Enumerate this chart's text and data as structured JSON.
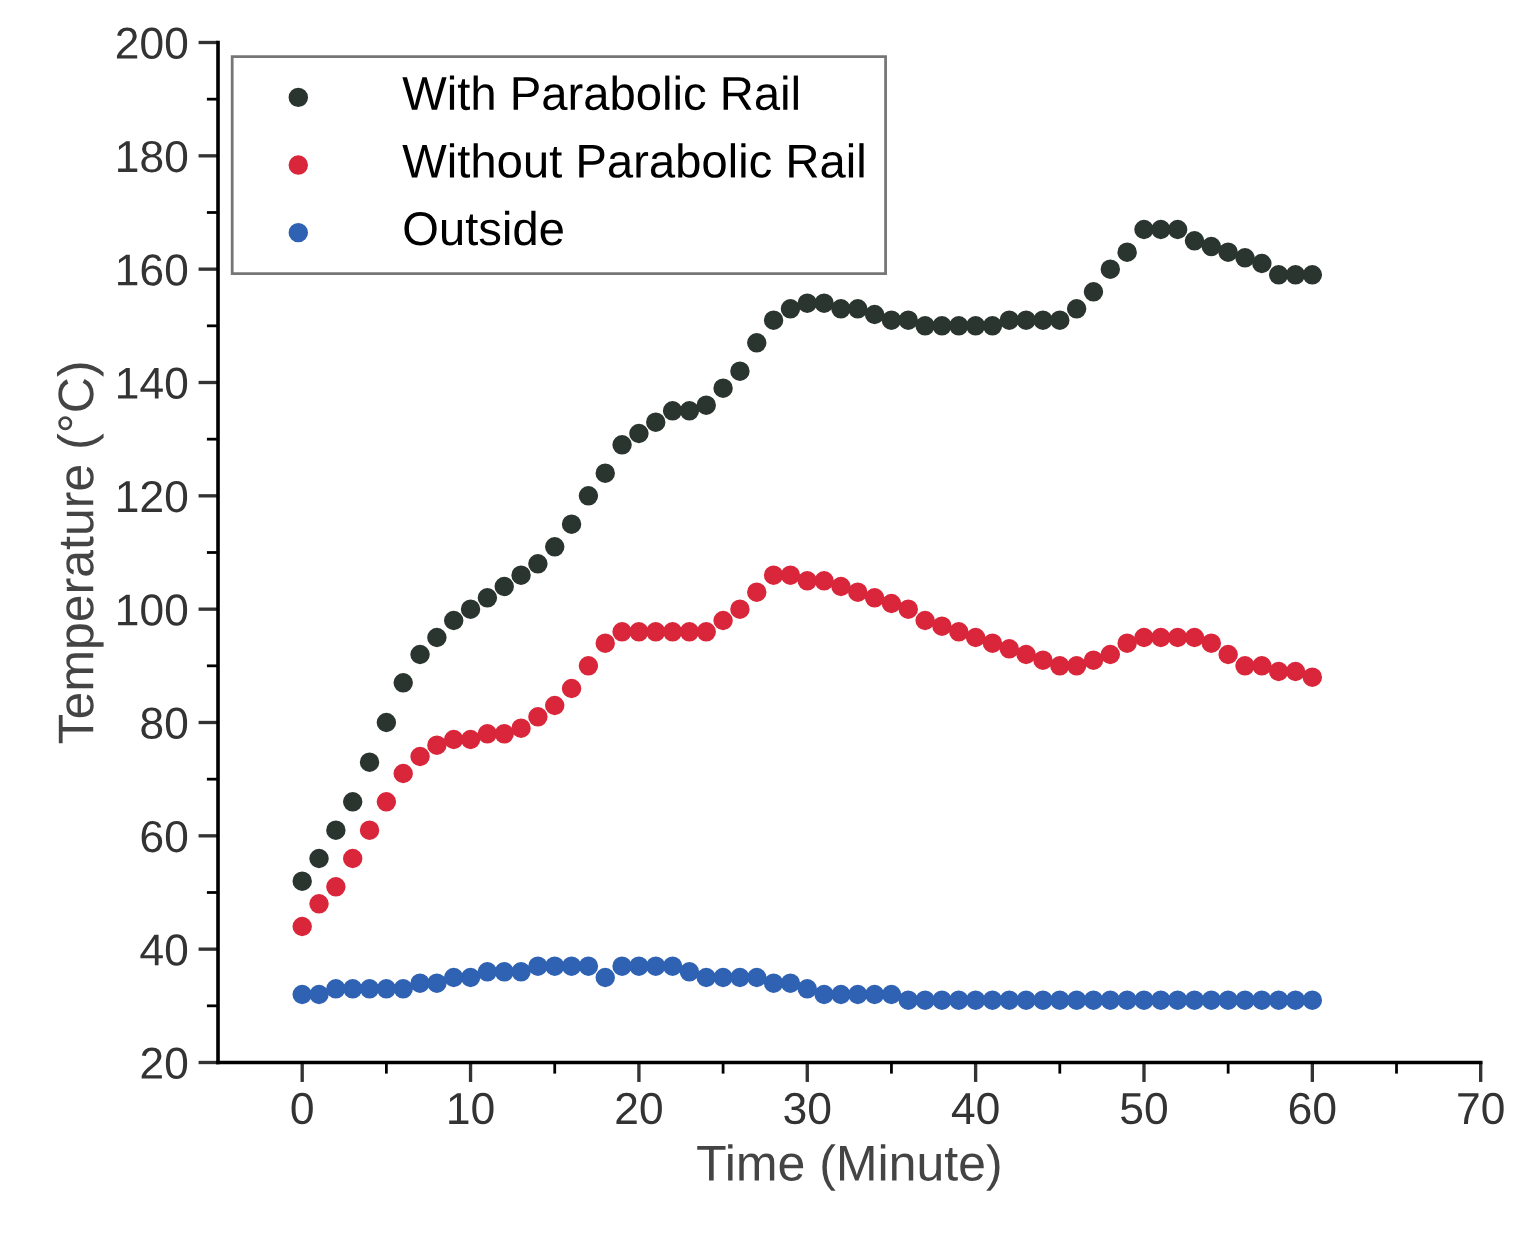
{
  "chart_data": {
    "type": "scatter",
    "xlabel": "Time (Minute)",
    "ylabel": "Temperature (°C)",
    "x": [
      0,
      1,
      2,
      3,
      4,
      5,
      6,
      7,
      8,
      9,
      10,
      11,
      12,
      13,
      14,
      15,
      16,
      17,
      18,
      19,
      20,
      21,
      22,
      23,
      24,
      25,
      26,
      27,
      28,
      29,
      30,
      31,
      32,
      33,
      34,
      35,
      36,
      37,
      38,
      39,
      40,
      41,
      42,
      43,
      44,
      45,
      46,
      47,
      48,
      49,
      50,
      51,
      52,
      53,
      54,
      55,
      56,
      57,
      58,
      59,
      60
    ],
    "series": [
      {
        "name": "With Parabolic Rail",
        "color": "#2b3530",
        "values": [
          52,
          56,
          61,
          66,
          73,
          80,
          87,
          92,
          95,
          98,
          100,
          102,
          104,
          106,
          108,
          111,
          115,
          120,
          124,
          129,
          131,
          133,
          135,
          135,
          136,
          139,
          142,
          147,
          151,
          153,
          154,
          154,
          153,
          153,
          152,
          151,
          151,
          150,
          150,
          150,
          150,
          150,
          151,
          151,
          151,
          151,
          153,
          156,
          160,
          163,
          167,
          167,
          167,
          165,
          164,
          163,
          162,
          161,
          159,
          159,
          159
        ]
      },
      {
        "name": "Without Parabolic Rail",
        "color": "#d9263a",
        "values": [
          44,
          48,
          51,
          56,
          61,
          66,
          71,
          74,
          76,
          77,
          77,
          78,
          78,
          79,
          81,
          83,
          86,
          90,
          94,
          96,
          96,
          96,
          96,
          96,
          96,
          98,
          100,
          103,
          106,
          106,
          105,
          105,
          104,
          103,
          102,
          101,
          100,
          98,
          97,
          96,
          95,
          94,
          93,
          92,
          91,
          90,
          90,
          91,
          92,
          94,
          95,
          95,
          95,
          95,
          94,
          92,
          90,
          90,
          89,
          89,
          88
        ]
      },
      {
        "name": "Outside",
        "color": "#2f62b3",
        "values": [
          32,
          32,
          33,
          33,
          33,
          33,
          33,
          34,
          34,
          35,
          35,
          36,
          36,
          36,
          37,
          37,
          37,
          37,
          35,
          37,
          37,
          37,
          37,
          36,
          35,
          35,
          35,
          35,
          34,
          34,
          33,
          32,
          32,
          32,
          32,
          32,
          31,
          31,
          31,
          31,
          31,
          31,
          31,
          31,
          31,
          31,
          31,
          31,
          31,
          31,
          31,
          31,
          31,
          31,
          31,
          31,
          31,
          31,
          31,
          31,
          31
        ]
      }
    ],
    "xlim": [
      -5,
      70
    ],
    "xticks": [
      0,
      10,
      20,
      30,
      40,
      50,
      60,
      70
    ],
    "ylim": [
      20,
      200
    ],
    "yticks": [
      20,
      40,
      60,
      80,
      100,
      120,
      140,
      160,
      180,
      200
    ],
    "marker": "circle",
    "legend": "top left",
    "grid": false
  }
}
